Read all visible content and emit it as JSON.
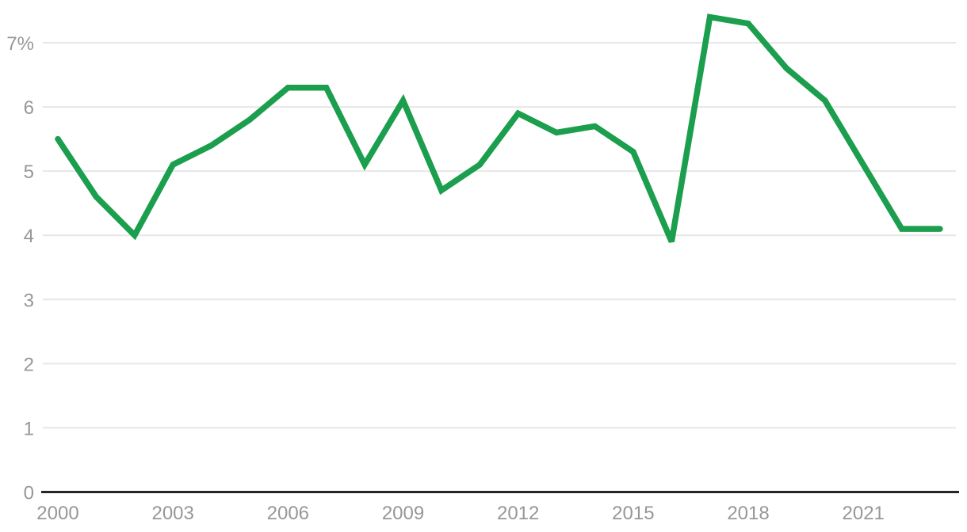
{
  "chart": {
    "colors": {
      "line": "#1b9e4d",
      "grid": "#e7e7e7",
      "axis": "#262626",
      "tick_label": "#979797",
      "background": "#ffffff"
    }
  },
  "chart_data": {
    "type": "line",
    "title": "",
    "xlabel": "",
    "ylabel": "",
    "x": [
      2000,
      2001,
      2002,
      2003,
      2004,
      2005,
      2006,
      2007,
      2008,
      2009,
      2010,
      2011,
      2012,
      2013,
      2014,
      2015,
      2016,
      2017,
      2018,
      2019,
      2020,
      2021,
      2022,
      2023
    ],
    "values": [
      5.5,
      4.6,
      4.0,
      5.1,
      5.4,
      5.8,
      6.3,
      6.3,
      5.1,
      6.1,
      4.7,
      5.1,
      5.9,
      5.6,
      5.7,
      5.3,
      3.9,
      7.4,
      7.3,
      6.6,
      6.1,
      5.1,
      4.1,
      4.1
    ],
    "series": [
      {
        "name": "percent",
        "values": [
          5.5,
          4.6,
          4.0,
          5.1,
          5.4,
          5.8,
          6.3,
          6.3,
          5.1,
          6.1,
          4.7,
          5.1,
          5.9,
          5.6,
          5.7,
          5.3,
          3.9,
          7.4,
          7.3,
          6.6,
          6.1,
          5.1,
          4.1,
          4.1
        ]
      }
    ],
    "xlim": [
      2000,
      2023
    ],
    "ylim": [
      0,
      7.5
    ],
    "grid": true,
    "legend": false,
    "y_ticks": [
      {
        "value": 0,
        "label": "0"
      },
      {
        "value": 1,
        "label": "1"
      },
      {
        "value": 2,
        "label": "2"
      },
      {
        "value": 3,
        "label": "3"
      },
      {
        "value": 4,
        "label": "4"
      },
      {
        "value": 5,
        "label": "5"
      },
      {
        "value": 6,
        "label": "6"
      },
      {
        "value": 7,
        "label": "7%"
      }
    ],
    "x_ticks": [
      {
        "value": 2000,
        "label": "2000"
      },
      {
        "value": 2003,
        "label": "2003"
      },
      {
        "value": 2006,
        "label": "2006"
      },
      {
        "value": 2009,
        "label": "2009"
      },
      {
        "value": 2012,
        "label": "2012"
      },
      {
        "value": 2015,
        "label": "2015"
      },
      {
        "value": 2018,
        "label": "2018"
      },
      {
        "value": 2021,
        "label": "2021"
      }
    ]
  }
}
